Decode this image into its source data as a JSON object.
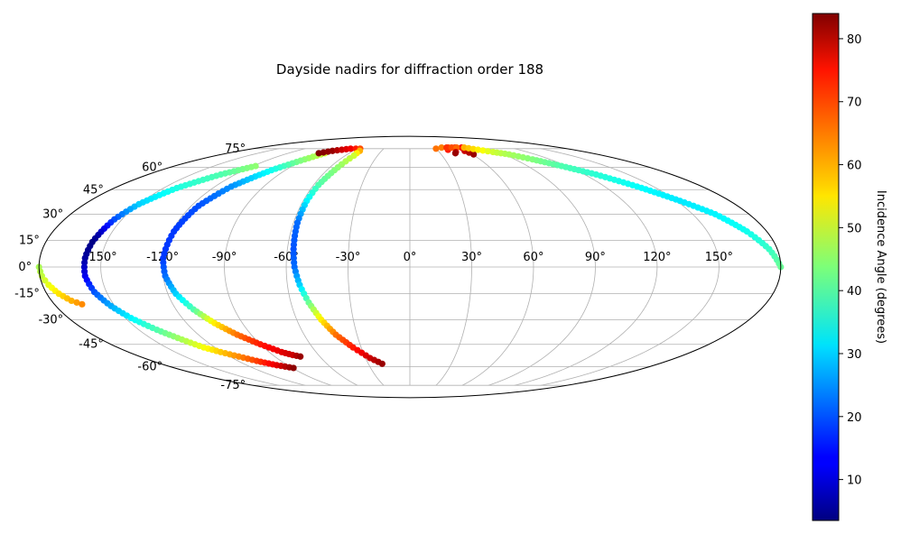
{
  "chart_data": {
    "type": "scatter",
    "projection": "mollweide",
    "title": "Dayside nadirs for diffraction order 188",
    "xlabel": "",
    "ylabel": "",
    "grid": true,
    "lon_ticks": [
      "-150°",
      "-120°",
      "-90°",
      "-60°",
      "-30°",
      "0°",
      "30°",
      "60°",
      "90°",
      "120°",
      "150°"
    ],
    "lat_ticks": [
      "75°",
      "60°",
      "45°",
      "30°",
      "15°",
      "0°",
      "-15°",
      "-30°",
      "-45°",
      "-60°",
      "-75°"
    ],
    "colorbar": {
      "label": "Incidence Angle (degrees)",
      "colormap": "jet",
      "range": [
        3.5,
        84
      ],
      "ticks": [
        "10",
        "20",
        "30",
        "40",
        "50",
        "60",
        "70",
        "80"
      ]
    },
    "series": [
      {
        "points": [
          [
            -180,
            0,
            47
          ],
          [
            -179,
            -5,
            49
          ],
          [
            -177,
            -10,
            52
          ],
          [
            -174,
            -15,
            56
          ],
          [
            -170,
            -19,
            60
          ],
          [
            -166,
            -21,
            63
          ]
        ]
      },
      {
        "points": [
          [
            -118,
            61,
            45
          ],
          [
            -130,
            55,
            40
          ],
          [
            -142,
            46,
            36
          ],
          [
            -150,
            36,
            30
          ],
          [
            -154,
            27,
            20
          ],
          [
            -156,
            18,
            7
          ],
          [
            -157,
            14,
            4
          ],
          [
            -158,
            5,
            6
          ],
          [
            -158,
            -5,
            12
          ],
          [
            -156,
            -14,
            20
          ],
          [
            -152,
            -22,
            27
          ],
          [
            -147,
            -29,
            33
          ],
          [
            -140,
            -36,
            40
          ],
          [
            -133,
            -42,
            47
          ],
          [
            -127,
            -47,
            53
          ],
          [
            -121,
            -50,
            58
          ],
          [
            -114,
            -53,
            63
          ],
          [
            -107,
            -56,
            69
          ],
          [
            -98,
            -59,
            76
          ],
          [
            -89,
            -61,
            83
          ]
        ]
      },
      {
        "points": [
          [
            -84,
            71,
            50
          ],
          [
            -90,
            66,
            45
          ],
          [
            -100,
            58,
            35
          ],
          [
            -110,
            47,
            25
          ],
          [
            -116,
            35,
            20
          ],
          [
            -119,
            20,
            18
          ],
          [
            -120,
            5,
            18
          ],
          [
            -119,
            -5,
            22
          ],
          [
            -116,
            -15,
            30
          ],
          [
            -111,
            -24,
            40
          ],
          [
            -105,
            -32,
            55
          ],
          [
            -98,
            -39,
            65
          ],
          [
            -90,
            -45,
            72
          ],
          [
            -82,
            -50,
            76
          ],
          [
            -77,
            -52,
            78
          ],
          [
            -73,
            -53,
            82
          ]
        ]
      },
      {
        "points": [
          [
            -90,
            71,
            84
          ],
          [
            -82,
            73,
            82
          ],
          [
            -75,
            74,
            78
          ],
          [
            -68,
            75,
            75
          ],
          [
            -62,
            75,
            72
          ],
          [
            -57,
            75,
            68
          ],
          [
            -53,
            73,
            60
          ],
          [
            -52,
            69,
            50
          ],
          [
            -54,
            60,
            45
          ],
          [
            -57,
            48,
            40
          ],
          [
            -58,
            38,
            33
          ],
          [
            -58,
            25,
            22
          ],
          [
            -57,
            10,
            20
          ],
          [
            -56,
            0,
            22
          ],
          [
            -54,
            -10,
            30
          ],
          [
            -51,
            -20,
            42
          ],
          [
            -47,
            -30,
            55
          ],
          [
            -42,
            -39,
            65
          ],
          [
            -35,
            -47,
            72
          ],
          [
            -27,
            -54,
            78
          ],
          [
            -20,
            -58,
            82
          ]
        ]
      },
      {
        "points": [
          [
            30,
            75,
            65
          ],
          [
            38,
            76,
            64
          ],
          [
            46,
            76,
            68
          ],
          [
            54,
            76,
            72
          ],
          [
            62,
            76,
            74
          ],
          [
            58,
            73,
            78
          ],
          [
            61,
            70,
            82
          ]
        ]
      },
      {
        "points": [
          [
            42,
            74,
            72
          ],
          [
            44,
            76,
            70
          ],
          [
            50,
            76,
            68
          ],
          [
            56,
            76,
            66
          ],
          [
            47,
            72,
            78
          ],
          [
            45,
            71,
            82
          ]
        ]
      },
      {
        "points": [
          [
            65,
            76,
            60
          ],
          [
            75,
            74,
            55
          ],
          [
            85,
            72,
            50
          ],
          [
            95,
            70,
            47
          ],
          [
            105,
            66,
            44
          ],
          [
            116,
            61,
            40
          ],
          [
            128,
            55,
            37
          ],
          [
            140,
            47,
            34
          ],
          [
            152,
            38,
            32
          ],
          [
            162,
            30,
            33
          ],
          [
            170,
            20,
            35
          ],
          [
            176,
            10,
            38
          ],
          [
            180,
            0,
            42
          ]
        ]
      }
    ]
  }
}
